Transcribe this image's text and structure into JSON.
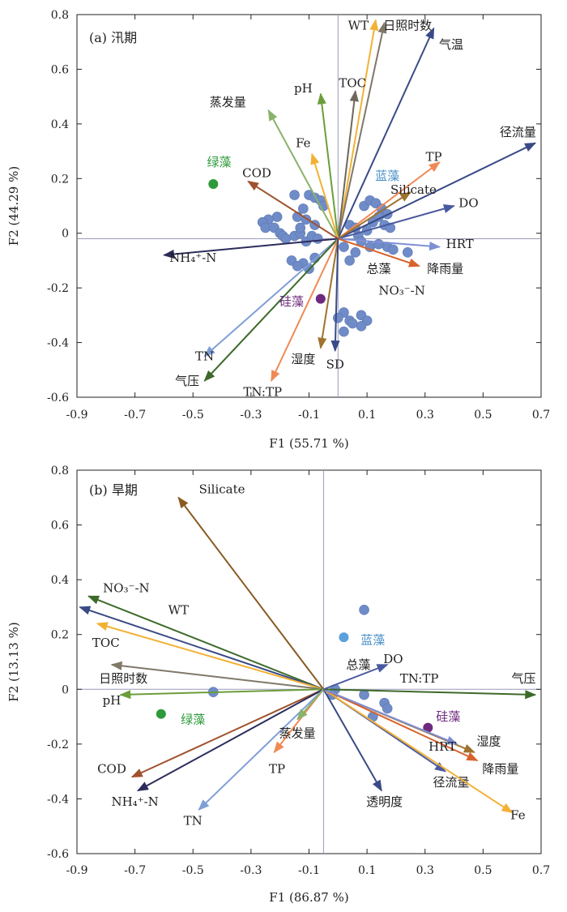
{
  "chart_data": [
    {
      "type": "scatter",
      "panel_label": "(a) 汛期",
      "xlabel": "F1 (55.71 %)",
      "ylabel": "F2 (44.29 %)",
      "xlim": [
        -0.9,
        0.7
      ],
      "ylim": [
        -0.6,
        0.8
      ],
      "xticks": [
        "-0.9",
        "-0.7",
        "-0.5",
        "-0.3",
        "-0.1",
        "0.1",
        "0.3",
        "0.5",
        "0.7"
      ],
      "yticks": [
        "-0.6",
        "-0.4",
        "-0.2",
        "0",
        "0.2",
        "0.4",
        "0.6",
        "0.8"
      ],
      "origin": [
        0.0,
        -0.02
      ],
      "vectors": [
        {
          "name": "WT",
          "tip": [
            0.13,
            0.78
          ],
          "label_pos": [
            0.07,
            0.76
          ],
          "color": "#f2b134"
        },
        {
          "name": "日照时数",
          "tip": [
            0.16,
            0.77
          ],
          "label_pos": [
            0.24,
            0.76
          ],
          "color": "#807869"
        },
        {
          "name": "气温",
          "tip": [
            0.33,
            0.75
          ],
          "label_pos": [
            0.39,
            0.69
          ],
          "color": "#3a4a86"
        },
        {
          "name": "TOC",
          "tip": [
            0.06,
            0.52
          ],
          "label_pos": [
            0.05,
            0.55
          ],
          "color": "#6e675b"
        },
        {
          "name": "pH",
          "tip": [
            -0.06,
            0.51
          ],
          "label_pos": [
            -0.12,
            0.53
          ],
          "color": "#6b9e3a"
        },
        {
          "name": "蒸发量",
          "tip": [
            -0.24,
            0.45
          ],
          "label_pos": [
            -0.38,
            0.48
          ],
          "color": "#8bb26a"
        },
        {
          "name": "Fe",
          "tip": [
            -0.09,
            0.29
          ],
          "label_pos": [
            -0.12,
            0.33
          ],
          "color": "#f2b134"
        },
        {
          "name": "COD",
          "tip": [
            -0.31,
            0.19
          ],
          "label_pos": [
            -0.28,
            0.22
          ],
          "color": "#a0522d"
        },
        {
          "name": "径流量",
          "tip": [
            0.68,
            0.33
          ],
          "label_pos": [
            0.62,
            0.37
          ],
          "color": "#3a4a86"
        },
        {
          "name": "TP",
          "tip": [
            0.35,
            0.26
          ],
          "label_pos": [
            0.33,
            0.28
          ],
          "color": "#f08a55"
        },
        {
          "name": "Silicate",
          "tip": [
            0.25,
            0.15
          ],
          "label_pos": [
            0.26,
            0.16
          ],
          "color": "#a0722d"
        },
        {
          "name": "DO",
          "tip": [
            0.4,
            0.1
          ],
          "label_pos": [
            0.45,
            0.11
          ],
          "color": "#4a5aa0"
        },
        {
          "name": "HRT",
          "tip": [
            0.35,
            -0.05
          ],
          "label_pos": [
            0.42,
            -0.04
          ],
          "color": "#7f8fd6"
        },
        {
          "name": "降雨量",
          "tip": [
            0.28,
            -0.12
          ],
          "label_pos": [
            0.37,
            -0.13
          ],
          "color": "#d9622b"
        },
        {
          "name": "NH₄⁺-N",
          "tip": [
            -0.6,
            -0.08
          ],
          "label_pos": [
            -0.5,
            -0.09
          ],
          "color": "#2c2c5c"
        },
        {
          "name": "TN",
          "tip": [
            -0.46,
            -0.45
          ],
          "label_pos": [
            -0.46,
            -0.45
          ],
          "color": "#7f9fd6"
        },
        {
          "name": "气压",
          "tip": [
            -0.46,
            -0.54
          ],
          "label_pos": [
            -0.52,
            -0.54
          ],
          "color": "#3d6a2a"
        },
        {
          "name": "TN:TP",
          "tip": [
            -0.23,
            -0.54
          ],
          "label_pos": [
            -0.26,
            -0.58
          ],
          "color": "#f08a55"
        },
        {
          "name": "湿度",
          "tip": [
            -0.06,
            -0.42
          ],
          "label_pos": [
            -0.12,
            -0.46
          ],
          "color": "#a0722d"
        },
        {
          "name": "SD",
          "tip": [
            -0.01,
            -0.43
          ],
          "label_pos": [
            -0.01,
            -0.48
          ],
          "color": "#3a4a86"
        }
      ],
      "extra_labels": [
        {
          "name": "总藻",
          "pos": [
            0.14,
            -0.13
          ],
          "color": "#1f1f1f"
        },
        {
          "name": "NO₃⁻-N",
          "pos": [
            0.22,
            -0.21
          ],
          "color": "#1f1f1f"
        },
        {
          "name": "绿藻",
          "pos": [
            -0.41,
            0.26
          ],
          "color": "#2e9a3a"
        },
        {
          "name": "蓝藻",
          "pos": [
            0.17,
            0.21
          ],
          "color": "#4a90c8"
        },
        {
          "name": "硅藻",
          "pos": [
            -0.16,
            -0.25
          ],
          "color": "#6e2a7e"
        }
      ],
      "special_points": [
        {
          "name": "绿藻",
          "x": -0.43,
          "y": 0.18,
          "color": "#2e9a3a"
        },
        {
          "name": "硅藻",
          "x": -0.06,
          "y": -0.24,
          "color": "#6e2a7e"
        }
      ],
      "samples": [
        [
          -0.21,
          0.06
        ],
        [
          -0.24,
          0.05
        ],
        [
          -0.26,
          0.04
        ],
        [
          -0.25,
          0.02
        ],
        [
          -0.22,
          0.02
        ],
        [
          -0.2,
          0.0
        ],
        [
          -0.19,
          -0.01
        ],
        [
          -0.18,
          -0.02
        ],
        [
          -0.15,
          -0.01
        ],
        [
          -0.13,
          0.0
        ],
        [
          -0.11,
          -0.03
        ],
        [
          -0.09,
          -0.01
        ],
        [
          -0.07,
          -0.02
        ],
        [
          -0.13,
          0.02
        ],
        [
          -0.11,
          0.05
        ],
        [
          -0.14,
          0.06
        ],
        [
          -0.08,
          0.03
        ],
        [
          -0.15,
          0.14
        ],
        [
          -0.1,
          0.14
        ],
        [
          -0.08,
          0.13
        ],
        [
          -0.06,
          0.12
        ],
        [
          -0.05,
          0.1
        ],
        [
          -0.12,
          0.09
        ],
        [
          0.04,
          0.03
        ],
        [
          0.06,
          0.02
        ],
        [
          0.09,
          0.1
        ],
        [
          0.11,
          0.12
        ],
        [
          0.13,
          0.11
        ],
        [
          0.15,
          0.09
        ],
        [
          0.17,
          0.07
        ],
        [
          0.14,
          0.06
        ],
        [
          0.12,
          0.04
        ],
        [
          0.16,
          0.03
        ],
        [
          0.18,
          0.02
        ],
        [
          0.1,
          0.01
        ],
        [
          0.07,
          -0.01
        ],
        [
          0.08,
          -0.03
        ],
        [
          0.11,
          -0.05
        ],
        [
          0.14,
          -0.04
        ],
        [
          0.17,
          -0.05
        ],
        [
          0.19,
          -0.06
        ],
        [
          0.24,
          -0.07
        ],
        [
          0.02,
          -0.05
        ],
        [
          0.06,
          -0.07
        ],
        [
          -0.16,
          -0.1
        ],
        [
          -0.12,
          -0.11
        ],
        [
          -0.1,
          -0.13
        ],
        [
          -0.14,
          -0.12
        ],
        [
          -0.08,
          -0.09
        ],
        [
          0.04,
          -0.1
        ],
        [
          0.02,
          -0.29
        ],
        [
          0.0,
          -0.31
        ],
        [
          0.04,
          -0.32
        ],
        [
          0.02,
          -0.36
        ],
        [
          0.05,
          -0.33
        ],
        [
          0.08,
          -0.3
        ],
        [
          0.1,
          -0.32
        ],
        [
          0.08,
          -0.34
        ]
      ]
    },
    {
      "type": "scatter",
      "panel_label": "(b) 旱期",
      "xlabel": "F1 (86.87 %)",
      "ylabel": "F2 (13.13 %)",
      "xlim": [
        -0.9,
        0.7
      ],
      "ylim": [
        -0.6,
        0.8
      ],
      "xticks": [
        "-0.9",
        "-0.7",
        "-0.5",
        "-0.3",
        "-0.1",
        "0.1",
        "0.3",
        "0.5",
        "0.7"
      ],
      "yticks": [
        "-0.6",
        "-0.4",
        "-0.2",
        "0",
        "0.2",
        "0.4",
        "0.6",
        "0.8"
      ],
      "origin": [
        -0.05,
        0.0
      ],
      "vectors": [
        {
          "name": "Silicate",
          "tip": [
            -0.55,
            0.7
          ],
          "label_pos": [
            -0.4,
            0.73
          ],
          "color": "#8a5a22"
        },
        {
          "name": "NO₃⁻-N",
          "tip": [
            -0.86,
            0.34
          ],
          "label_pos": [
            -0.73,
            0.37
          ],
          "color": "#3d6a2a"
        },
        {
          "name": "WT",
          "tip": [
            -0.89,
            0.3
          ],
          "label_pos": [
            -0.55,
            0.29
          ],
          "color": "#3a4a86"
        },
        {
          "name": "TOC",
          "tip": [
            -0.83,
            0.24
          ],
          "label_pos": [
            -0.8,
            0.17
          ],
          "color": "#f2b134"
        },
        {
          "name": "日照时数",
          "tip": [
            -0.78,
            0.09
          ],
          "label_pos": [
            -0.74,
            0.04
          ],
          "color": "#807869"
        },
        {
          "name": "pH",
          "tip": [
            -0.75,
            -0.02
          ],
          "label_pos": [
            -0.78,
            -0.04
          ],
          "color": "#6b9e3a"
        },
        {
          "name": "COD",
          "tip": [
            -0.71,
            -0.32
          ],
          "label_pos": [
            -0.78,
            -0.29
          ],
          "color": "#a0522d"
        },
        {
          "name": "NH₄⁺-N",
          "tip": [
            -0.69,
            -0.37
          ],
          "label_pos": [
            -0.7,
            -0.41
          ],
          "color": "#2c2c5c"
        },
        {
          "name": "TN",
          "tip": [
            -0.48,
            -0.44
          ],
          "label_pos": [
            -0.5,
            -0.48
          ],
          "color": "#7f9fd6"
        },
        {
          "name": "TP",
          "tip": [
            -0.22,
            -0.23
          ],
          "label_pos": [
            -0.21,
            -0.29
          ],
          "color": "#f08a55"
        },
        {
          "name": "蒸发量",
          "tip": [
            -0.14,
            -0.11
          ],
          "label_pos": [
            -0.14,
            -0.16
          ],
          "color": "#8bb26a"
        },
        {
          "name": "透明度",
          "tip": [
            0.15,
            -0.37
          ],
          "label_pos": [
            0.16,
            -0.41
          ],
          "color": "#3a4a86"
        },
        {
          "name": "径流量",
          "tip": [
            0.37,
            -0.3
          ],
          "label_pos": [
            0.39,
            -0.34
          ],
          "color": "#4a5aa0"
        },
        {
          "name": "Fe",
          "tip": [
            0.6,
            -0.45
          ],
          "label_pos": [
            0.62,
            -0.46
          ],
          "color": "#f2b134"
        },
        {
          "name": "降雨量",
          "tip": [
            0.48,
            -0.26
          ],
          "label_pos": [
            0.56,
            -0.29
          ],
          "color": "#d9622b"
        },
        {
          "name": "湿度",
          "tip": [
            0.47,
            -0.23
          ],
          "label_pos": [
            0.52,
            -0.19
          ],
          "color": "#a0722d"
        },
        {
          "name": "HRT",
          "tip": [
            0.41,
            -0.2
          ],
          "label_pos": [
            0.36,
            -0.21
          ],
          "color": "#7f8fd6"
        },
        {
          "name": "气压",
          "tip": [
            0.68,
            -0.02
          ],
          "label_pos": [
            0.64,
            0.04
          ],
          "color": "#3d6a2a"
        },
        {
          "name": "DO",
          "tip": [
            0.17,
            0.09
          ],
          "label_pos": [
            0.19,
            0.11
          ],
          "color": "#4a5aa0"
        }
      ],
      "extra_labels": [
        {
          "name": "总藻",
          "pos": [
            0.07,
            0.09
          ],
          "color": "#1f1f1f"
        },
        {
          "name": "TN:TP",
          "pos": [
            0.28,
            0.04
          ],
          "color": "#1f1f1f"
        },
        {
          "name": "蓝藻",
          "pos": [
            0.12,
            0.18
          ],
          "color": "#4a90c8"
        },
        {
          "name": "绿藻",
          "pos": [
            -0.5,
            -0.11
          ],
          "color": "#2e9a3a"
        },
        {
          "name": "硅藻",
          "pos": [
            0.38,
            -0.1
          ],
          "color": "#6e2a7e"
        }
      ],
      "special_points": [
        {
          "name": "蓝藻",
          "x": 0.02,
          "y": 0.19,
          "color": "#5aa0dc"
        },
        {
          "name": "绿藻",
          "x": -0.61,
          "y": -0.09,
          "color": "#2e9a3a"
        },
        {
          "name": "硅藻",
          "x": 0.31,
          "y": -0.14,
          "color": "#6e2a7e"
        }
      ],
      "samples": [
        [
          0.09,
          0.29
        ],
        [
          -0.43,
          -0.01
        ],
        [
          0.09,
          -0.02
        ],
        [
          0.16,
          -0.05
        ],
        [
          0.17,
          -0.07
        ],
        [
          0.12,
          -0.1
        ],
        [
          -0.01,
          0.0
        ],
        [
          -0.02,
          -0.02
        ]
      ]
    }
  ]
}
